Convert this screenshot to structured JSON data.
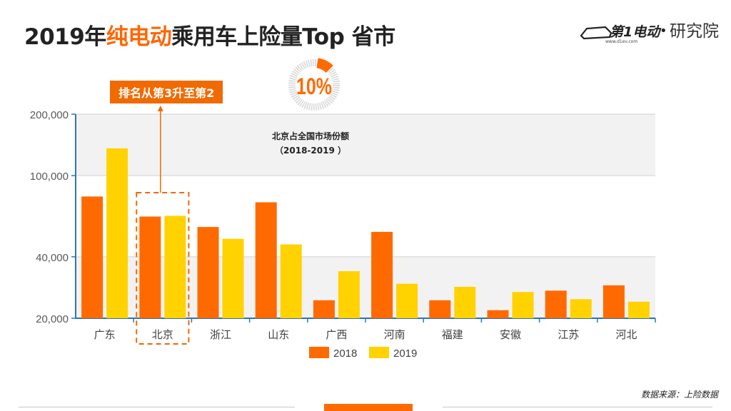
{
  "title": {
    "part1": "2019年",
    "highlight": "纯电动",
    "part2": "乘用车上险量Top 省市"
  },
  "logo": {
    "brand_main": "第1电动",
    "brand_url": "www.d1ev.com",
    "brand_sep": "•",
    "brand_suffix": "研究院"
  },
  "callout": {
    "text": "排名从第3升至第2"
  },
  "share": {
    "value_text": "10%",
    "value": 0.1,
    "caption_line1": "北京占全国市场份额",
    "caption_line2": "（2018-2019 ）"
  },
  "source": {
    "text": "数据来源：上险数据"
  },
  "colors": {
    "s2018": "#ff6a00",
    "s2019": "#ffd200",
    "accent": "#f06a00",
    "axis": "#2e75b6"
  },
  "chart_data": {
    "type": "bar",
    "scale": "log",
    "categories": [
      "广东",
      "北京",
      "浙江",
      "山东",
      "广西",
      "河南",
      "福建",
      "安徽",
      "江苏",
      "河北"
    ],
    "series": [
      {
        "name": "2018",
        "values": [
          79000,
          63000,
          56000,
          74000,
          24500,
          53000,
          24500,
          21900,
          27300,
          29000
        ]
      },
      {
        "name": "2019",
        "values": [
          136000,
          63500,
          49000,
          46000,
          34000,
          29500,
          28500,
          26900,
          24800,
          24100
        ]
      }
    ],
    "yticks": [
      20000,
      40000,
      100000,
      200000
    ],
    "ytick_labels": [
      "20,000",
      "40,000",
      "100,000",
      "200,000"
    ],
    "ylim": [
      20000,
      200000
    ],
    "grid": true,
    "legend": "bottom",
    "highlight_category": "北京"
  }
}
